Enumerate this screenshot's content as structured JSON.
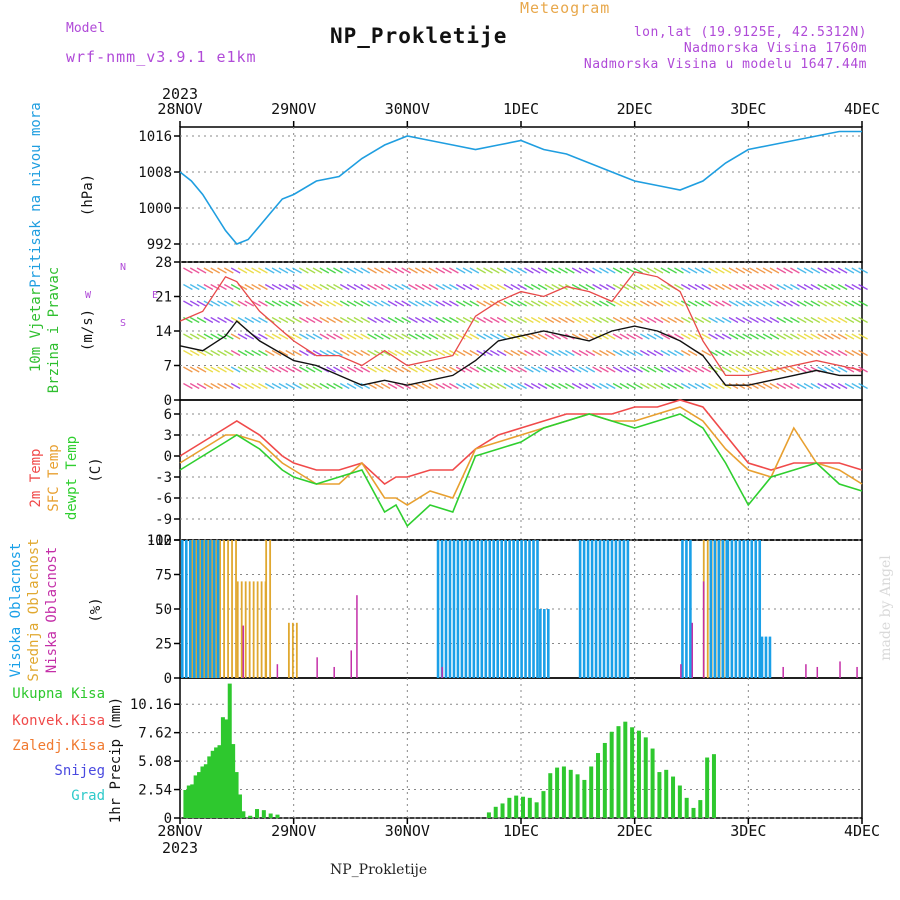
{
  "header": {
    "model_label": "Model",
    "model_name": "wrf-nmm_v3.9.1 e1km",
    "title": "NP_Prokletije",
    "subtitle": "Meteogram",
    "info_lonlat": "lon,lat (19.9125E, 42.5312N)",
    "info_elev": "Nadmorska Visina 1760m",
    "info_model_elev": "Nadmorska Visina u modelu 1647.44m"
  },
  "footer": {
    "station": "NP_Prokletije",
    "credit": "made by Angel"
  },
  "colors": {
    "pressure": "#1f9ee0",
    "wind_label": "#2fbf2f",
    "temp2m": "#f04a4a",
    "sfc": "#e8a030",
    "dew": "#2fcf2f",
    "high_cloud": "#1aa0e8",
    "mid_cloud": "#e0a830",
    "low_cloud": "#c42fa8",
    "precip": "#2ec82e",
    "conv": "#f04a4a",
    "frozen": "#f07a30",
    "snow": "#4a4ae0",
    "grad": "#2ecaca",
    "violet": "#b04ad8"
  },
  "chart_data": [
    {
      "type": "line",
      "title": "",
      "ylabel": "Pritisak na nivou mora",
      "unit": "(hPa)",
      "x": [
        "28NOV",
        "29NOV",
        "30NOV",
        "1DEC",
        "2DEC",
        "3DEC",
        "4DEC"
      ],
      "x_year": "2023",
      "yticks": [
        992,
        1000,
        1008,
        1016
      ],
      "ylim": [
        988,
        1018
      ],
      "series": [
        {
          "name": "",
          "x": [
            0.0,
            0.1,
            0.2,
            0.3,
            0.4,
            0.5,
            0.6,
            0.7,
            0.8,
            0.9,
            1.0,
            1.2,
            1.4,
            1.6,
            1.8,
            2.0,
            2.2,
            2.4,
            2.6,
            2.8,
            3.0,
            3.2,
            3.4,
            3.6,
            3.8,
            4.0,
            4.2,
            4.4,
            4.6,
            4.8,
            5.0,
            5.2,
            5.4,
            5.6,
            5.8,
            6.0
          ],
          "values": [
            1008,
            1006,
            1003,
            999,
            995,
            992,
            993,
            996,
            999,
            1002,
            1003,
            1006,
            1007,
            1011,
            1014,
            1016,
            1015,
            1014,
            1013,
            1014,
            1015,
            1013,
            1012,
            1010,
            1008,
            1006,
            1005,
            1004,
            1006,
            1010,
            1013,
            1014,
            1015,
            1016,
            1017,
            1017
          ]
        }
      ],
      "grid": true
    },
    {
      "type": "line",
      "ylabel": "10m Vjetar Brzina i Pravac",
      "unit": "(m/s)",
      "yticks": [
        0,
        7,
        14,
        21,
        28
      ],
      "ylim": [
        0,
        28
      ],
      "compass": {
        "n": "N",
        "w": "W",
        "e": "E",
        "s": "S"
      },
      "series": [
        {
          "name": "speed",
          "x": [
            0.0,
            0.2,
            0.4,
            0.5,
            0.7,
            1.0,
            1.2,
            1.4,
            1.6,
            1.8,
            2.0,
            2.2,
            2.4,
            2.6,
            2.8,
            3.0,
            3.2,
            3.4,
            3.6,
            3.8,
            4.0,
            4.2,
            4.4,
            4.6,
            4.8,
            5.0,
            5.2,
            5.4,
            5.6,
            5.8,
            6.0
          ],
          "values": [
            11,
            10,
            13,
            16,
            12,
            8,
            7,
            5,
            3,
            4,
            3,
            4,
            5,
            8,
            12,
            13,
            14,
            13,
            12,
            14,
            15,
            14,
            12,
            9,
            3,
            3,
            4,
            5,
            6,
            5,
            5
          ]
        },
        {
          "name": "gust",
          "x": [
            0.0,
            0.2,
            0.4,
            0.5,
            0.7,
            1.0,
            1.2,
            1.4,
            1.6,
            1.8,
            2.0,
            2.2,
            2.4,
            2.6,
            2.8,
            3.0,
            3.2,
            3.4,
            3.6,
            3.8,
            4.0,
            4.2,
            4.4,
            4.6,
            4.8,
            5.0,
            5.2,
            5.4,
            5.6,
            5.8,
            6.0
          ],
          "values": [
            16,
            18,
            25,
            24,
            18,
            12,
            9,
            9,
            7,
            10,
            7,
            8,
            9,
            17,
            20,
            22,
            21,
            23,
            22,
            20,
            26,
            25,
            22,
            12,
            5,
            5,
            6,
            7,
            8,
            7,
            6
          ]
        }
      ],
      "grid": true
    },
    {
      "type": "line",
      "ylabels": [
        "2m Temp",
        "SFC Temp",
        "dewpt Temp"
      ],
      "unit": "(C)",
      "yticks": [
        -12,
        -9,
        -6,
        -3,
        0,
        3,
        6
      ],
      "ylim": [
        -12,
        8
      ],
      "x": [
        0.0,
        0.2,
        0.4,
        0.5,
        0.7,
        0.9,
        1.0,
        1.2,
        1.4,
        1.6,
        1.8,
        1.9,
        2.0,
        2.2,
        2.4,
        2.6,
        2.8,
        3.0,
        3.2,
        3.4,
        3.6,
        3.8,
        4.0,
        4.2,
        4.4,
        4.6,
        4.8,
        5.0,
        5.2,
        5.4,
        5.6,
        5.8,
        6.0
      ],
      "series": [
        {
          "name": "2m Temp",
          "values": [
            0,
            2,
            4,
            5,
            3,
            0,
            -1,
            -2,
            -2,
            -1,
            -4,
            -3,
            -3,
            -2,
            -2,
            1,
            3,
            4,
            5,
            6,
            6,
            6,
            7,
            7,
            8,
            7,
            3,
            -1,
            -2,
            -1,
            -1,
            -1,
            -2
          ]
        },
        {
          "name": "SFC Temp",
          "values": [
            -1,
            1,
            3,
            3,
            2,
            -1,
            -2,
            -4,
            -4,
            -1,
            -6,
            -6,
            -7,
            -5,
            -6,
            1,
            2,
            3,
            4,
            5,
            6,
            5,
            5,
            6,
            7,
            5,
            1,
            -2,
            -3,
            4,
            -1,
            -2,
            -4
          ]
        },
        {
          "name": "dewpt Temp",
          "values": [
            -2,
            0,
            2,
            3,
            1,
            -2,
            -3,
            -4,
            -3,
            -2,
            -8,
            -7,
            -10,
            -7,
            -8,
            0,
            1,
            2,
            4,
            5,
            6,
            5,
            4,
            5,
            6,
            4,
            -1,
            -7,
            -3,
            -2,
            -1,
            -4,
            -5
          ]
        }
      ],
      "grid": true
    },
    {
      "type": "bar",
      "ylabels": [
        "Visoka Oblacnost",
        "Srednja Oblacnost",
        "Niska Oblacnost"
      ],
      "unit": "(%)",
      "yticks": [
        0,
        25,
        50,
        75,
        100
      ],
      "ylim": [
        0,
        100
      ],
      "series": [
        {
          "name": "Visoka Oblacnost",
          "segments": [
            [
              0.0,
              0.35,
              100
            ],
            [
              2.25,
              3.15,
              100
            ],
            [
              3.15,
              3.25,
              50
            ],
            [
              3.5,
              3.95,
              100
            ],
            [
              4.4,
              4.5,
              100
            ],
            [
              4.65,
              4.8,
              100
            ],
            [
              4.8,
              5.1,
              100
            ],
            [
              5.1,
              5.2,
              30
            ]
          ]
        },
        {
          "name": "Srednja Oblacnost",
          "segments": [
            [
              0.1,
              0.5,
              100
            ],
            [
              0.5,
              0.75,
              70
            ],
            [
              0.75,
              0.8,
              100
            ],
            [
              0.95,
              1.05,
              40
            ],
            [
              4.6,
              5.0,
              100
            ]
          ]
        },
        {
          "name": "Niska Oblacnost",
          "bars": [
            [
              0.55,
              38
            ],
            [
              0.85,
              10
            ],
            [
              1.2,
              15
            ],
            [
              1.35,
              8
            ],
            [
              1.5,
              20
            ],
            [
              1.55,
              60
            ],
            [
              2.3,
              8
            ],
            [
              4.4,
              10
            ],
            [
              4.5,
              40
            ],
            [
              4.6,
              70
            ],
            [
              5.3,
              8
            ],
            [
              5.5,
              10
            ],
            [
              5.6,
              8
            ],
            [
              5.8,
              12
            ],
            [
              5.95,
              8
            ]
          ]
        }
      ],
      "grid": true
    },
    {
      "type": "bar",
      "ylabel": "1hr Precip",
      "unit": "(mm)",
      "legend": [
        "Ukupna Kisa",
        "Konvek.Kisa",
        "Zaledj.Kisa",
        "Snijeg",
        "Grad"
      ],
      "yticks": [
        0,
        2.54,
        5.08,
        7.62,
        10.16
      ],
      "ylim": [
        0,
        12.5
      ],
      "series": [
        {
          "name": "Ukupna Kisa",
          "x": [
            0.03,
            0.06,
            0.09,
            0.12,
            0.15,
            0.18,
            0.21,
            0.24,
            0.27,
            0.3,
            0.33,
            0.36,
            0.39,
            0.42,
            0.45,
            0.48,
            0.51,
            0.54,
            0.6,
            0.66,
            0.72,
            0.78,
            0.84,
            2.7,
            2.76,
            2.82,
            2.88,
            2.94,
            3.0,
            3.06,
            3.12,
            3.18,
            3.24,
            3.3,
            3.36,
            3.42,
            3.48,
            3.54,
            3.6,
            3.66,
            3.72,
            3.78,
            3.84,
            3.9,
            3.96,
            4.02,
            4.08,
            4.14,
            4.2,
            4.26,
            4.32,
            4.38,
            4.44,
            4.5,
            4.56,
            4.62,
            4.68
          ],
          "values": [
            2.5,
            2.9,
            3.0,
            3.8,
            4.1,
            4.6,
            4.8,
            5.5,
            6.0,
            6.3,
            6.5,
            9.0,
            8.8,
            12.0,
            6.6,
            4.1,
            2.1,
            0.6,
            0.2,
            0.8,
            0.7,
            0.4,
            0.3,
            0.5,
            1.0,
            1.3,
            1.8,
            2.0,
            1.9,
            1.8,
            1.4,
            2.4,
            4.0,
            4.5,
            4.6,
            4.3,
            3.9,
            3.4,
            4.6,
            5.8,
            6.7,
            7.7,
            8.2,
            8.6,
            8.1,
            7.8,
            7.2,
            6.2,
            4.1,
            4.3,
            3.7,
            2.9,
            1.8,
            0.9,
            1.6,
            5.4,
            5.7
          ]
        }
      ],
      "grid": true
    }
  ]
}
